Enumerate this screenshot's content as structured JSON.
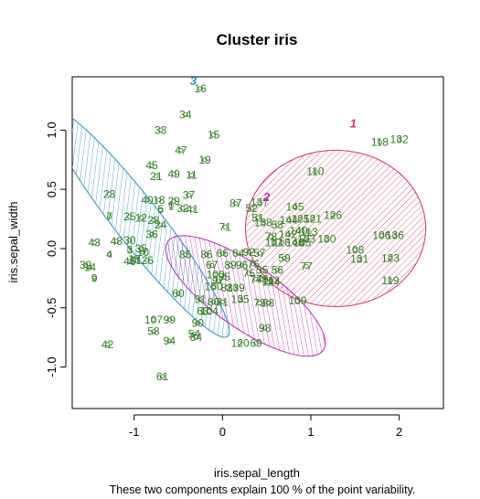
{
  "chart_data": {
    "type": "scatter",
    "title": "Cluster iris",
    "xlabel": "iris.sepal_length",
    "ylabel": "iris.sepal_width",
    "subtitle": "These two components explain 100 % of the point variability.",
    "xlim": [
      -1.7,
      2.5
    ],
    "ylim": [
      -1.35,
      1.45
    ],
    "xticks": [
      -1,
      0,
      1,
      2
    ],
    "yticks": [
      -1.0,
      -0.5,
      0.0,
      0.5,
      1.0
    ],
    "ytick_labels": [
      "-1.0",
      "-0.5",
      "0.0",
      "0.5",
      "1.0"
    ],
    "grid": false,
    "colors": {
      "point": "#2e7d1f",
      "cluster1": "#d6336c",
      "cluster2": "#c71fb5",
      "cluster3": "#2a8fc4"
    },
    "clusters": [
      {
        "label": "1",
        "color": "#d6336c",
        "cx": 1.28,
        "cy": 0.17,
        "rx": 1.02,
        "ry": 0.66,
        "angle": 0,
        "label_x": 1.48,
        "label_y": 1.02
      },
      {
        "label": "2",
        "color": "#c71fb5",
        "cx": 0.26,
        "cy": -0.4,
        "rx": 0.36,
        "ry": 0.8,
        "angle": -55,
        "label_x": 0.5,
        "label_y": 0.4
      },
      {
        "label": "3",
        "color": "#2a8fc4",
        "cx": -0.95,
        "cy": 0.22,
        "rx": 0.26,
        "ry": 1.22,
        "angle": -38,
        "label_x": -0.33,
        "label_y": 1.38
      }
    ],
    "points": [
      {
        "label": "16",
        "x": -0.25,
        "y": 1.35
      },
      {
        "label": "34",
        "x": -0.42,
        "y": 1.13
      },
      {
        "label": "33",
        "x": -0.7,
        "y": 1.0
      },
      {
        "label": "15",
        "x": -0.1,
        "y": 0.96
      },
      {
        "label": "47",
        "x": -0.47,
        "y": 0.83
      },
      {
        "label": "19",
        "x": -0.2,
        "y": 0.75
      },
      {
        "label": "45",
        "x": -0.8,
        "y": 0.7
      },
      {
        "label": "21",
        "x": -0.75,
        "y": 0.61
      },
      {
        "label": "49",
        "x": -0.55,
        "y": 0.63
      },
      {
        "label": "11",
        "x": -0.35,
        "y": 0.62
      },
      {
        "label": "23",
        "x": -1.28,
        "y": 0.46
      },
      {
        "label": "37",
        "x": -0.38,
        "y": 0.45
      },
      {
        "label": "40",
        "x": -0.85,
        "y": 0.41
      },
      {
        "label": "18",
        "x": -0.72,
        "y": 0.41
      },
      {
        "label": "29",
        "x": -0.55,
        "y": 0.4
      },
      {
        "label": "5",
        "x": -0.7,
        "y": 0.33
      },
      {
        "label": "1",
        "x": -0.58,
        "y": 0.36
      },
      {
        "label": "32",
        "x": -0.45,
        "y": 0.34
      },
      {
        "label": "41",
        "x": -0.34,
        "y": 0.33
      },
      {
        "label": "7",
        "x": -1.28,
        "y": 0.27
      },
      {
        "label": "25",
        "x": -1.05,
        "y": 0.27
      },
      {
        "label": "12",
        "x": -0.92,
        "y": 0.26
      },
      {
        "label": "28",
        "x": -0.78,
        "y": 0.24
      },
      {
        "label": "24",
        "x": -0.7,
        "y": 0.2
      },
      {
        "label": "36",
        "x": -0.8,
        "y": 0.12
      },
      {
        "label": "43",
        "x": -1.45,
        "y": 0.05
      },
      {
        "label": "48",
        "x": -1.2,
        "y": 0.06
      },
      {
        "label": "30",
        "x": -1.05,
        "y": 0.07
      },
      {
        "label": "4",
        "x": -1.28,
        "y": -0.05
      },
      {
        "label": "3",
        "x": -1.05,
        "y": -0.01
      },
      {
        "label": "35",
        "x": -0.92,
        "y": 0.0
      },
      {
        "label": "10",
        "x": -0.9,
        "y": -0.03
      },
      {
        "label": "13",
        "x": -1.0,
        "y": -0.09
      },
      {
        "label": "46",
        "x": -1.05,
        "y": -0.11
      },
      {
        "label": "31",
        "x": -0.98,
        "y": -0.1
      },
      {
        "label": "26",
        "x": -0.85,
        "y": -0.1
      },
      {
        "label": "39",
        "x": -1.55,
        "y": -0.14
      },
      {
        "label": "14",
        "x": -1.5,
        "y": -0.16
      },
      {
        "label": "9",
        "x": -1.45,
        "y": -0.25
      },
      {
        "label": "42",
        "x": -1.3,
        "y": -0.81
      },
      {
        "label": "110",
        "x": 1.05,
        "y": 0.65
      },
      {
        "label": "118",
        "x": 1.78,
        "y": 0.9
      },
      {
        "label": "132",
        "x": 2.0,
        "y": 0.92
      },
      {
        "label": "126",
        "x": 1.25,
        "y": 0.28
      },
      {
        "label": "106",
        "x": 1.8,
        "y": 0.11
      },
      {
        "label": "136",
        "x": 1.95,
        "y": 0.11
      },
      {
        "label": "103",
        "x": 0.95,
        "y": 0.08
      },
      {
        "label": "130",
        "x": 1.18,
        "y": 0.08
      },
      {
        "label": "108",
        "x": 1.5,
        "y": -0.01
      },
      {
        "label": "131",
        "x": 1.55,
        "y": -0.09
      },
      {
        "label": "123",
        "x": 1.9,
        "y": -0.08
      },
      {
        "label": "119",
        "x": 1.9,
        "y": -0.27
      },
      {
        "label": "109",
        "x": 0.85,
        "y": -0.44
      },
      {
        "label": "145",
        "x": 0.82,
        "y": 0.35
      },
      {
        "label": "125",
        "x": 0.88,
        "y": 0.25
      },
      {
        "label": "121",
        "x": 1.02,
        "y": 0.25
      },
      {
        "label": "144",
        "x": 0.75,
        "y": 0.24
      },
      {
        "label": "140",
        "x": 0.86,
        "y": 0.15
      },
      {
        "label": "113",
        "x": 0.98,
        "y": 0.14
      },
      {
        "label": "142",
        "x": 0.74,
        "y": 0.12
      },
      {
        "label": "116",
        "x": 0.67,
        "y": 0.05
      },
      {
        "label": "148",
        "x": 0.82,
        "y": 0.05
      },
      {
        "label": "105",
        "x": 0.9,
        "y": 0.05
      },
      {
        "label": "117",
        "x": 0.58,
        "y": 0.05
      },
      {
        "label": "77",
        "x": 0.95,
        "y": -0.15
      },
      {
        "label": "87",
        "x": 0.15,
        "y": 0.38
      },
      {
        "label": "137",
        "x": 0.42,
        "y": 0.39
      },
      {
        "label": "52",
        "x": 0.33,
        "y": 0.34
      },
      {
        "label": "51",
        "x": 0.4,
        "y": 0.26
      },
      {
        "label": "138",
        "x": 0.46,
        "y": 0.22
      },
      {
        "label": "53",
        "x": 0.62,
        "y": 0.2
      },
      {
        "label": "71",
        "x": 0.03,
        "y": 0.18
      },
      {
        "label": "78",
        "x": 0.55,
        "y": 0.1
      },
      {
        "label": "59",
        "x": 0.7,
        "y": -0.08
      },
      {
        "label": "85",
        "x": -0.42,
        "y": -0.05
      },
      {
        "label": "86",
        "x": -0.18,
        "y": -0.05
      },
      {
        "label": "66",
        "x": 0.0,
        "y": -0.04
      },
      {
        "label": "64",
        "x": 0.18,
        "y": -0.04
      },
      {
        "label": "92",
        "x": 0.3,
        "y": -0.03
      },
      {
        "label": "57",
        "x": 0.42,
        "y": -0.04
      },
      {
        "label": "76",
        "x": 0.35,
        "y": -0.13
      },
      {
        "label": "67",
        "x": -0.12,
        "y": -0.14
      },
      {
        "label": "89",
        "x": 0.09,
        "y": -0.14
      },
      {
        "label": "96",
        "x": 0.22,
        "y": -0.14
      },
      {
        "label": "55",
        "x": 0.45,
        "y": -0.18
      },
      {
        "label": "56",
        "x": 0.62,
        "y": -0.18
      },
      {
        "label": "75",
        "x": 0.3,
        "y": -0.21
      },
      {
        "label": "74",
        "x": 0.38,
        "y": -0.26
      },
      {
        "label": "100",
        "x": -0.08,
        "y": -0.22
      },
      {
        "label": "95",
        "x": 0.02,
        "y": -0.24
      },
      {
        "label": "97",
        "x": -0.05,
        "y": -0.27
      },
      {
        "label": "79",
        "x": 0.45,
        "y": -0.26
      },
      {
        "label": "124",
        "x": 0.55,
        "y": -0.28
      },
      {
        "label": "112",
        "x": 0.55,
        "y": -0.27
      },
      {
        "label": "150",
        "x": -0.1,
        "y": -0.32
      },
      {
        "label": "83",
        "x": 0.05,
        "y": -0.33
      },
      {
        "label": "139",
        "x": 0.15,
        "y": -0.33
      },
      {
        "label": "135",
        "x": 0.2,
        "y": -0.43
      },
      {
        "label": "73",
        "x": 0.42,
        "y": -0.46
      },
      {
        "label": "88",
        "x": 0.52,
        "y": -0.46
      },
      {
        "label": "91",
        "x": -0.25,
        "y": -0.43
      },
      {
        "label": "80",
        "x": -0.1,
        "y": -0.45
      },
      {
        "label": "81",
        "x": 0.0,
        "y": -0.45
      },
      {
        "label": "60",
        "x": -0.5,
        "y": -0.38
      },
      {
        "label": "104",
        "x": -0.15,
        "y": -0.53
      },
      {
        "label": "63",
        "x": -0.22,
        "y": -0.53
      },
      {
        "label": "107",
        "x": -0.78,
        "y": -0.6
      },
      {
        "label": "99",
        "x": -0.6,
        "y": -0.6
      },
      {
        "label": "90",
        "x": -0.28,
        "y": -0.63
      },
      {
        "label": "54",
        "x": -0.32,
        "y": -0.72
      },
      {
        "label": "58",
        "x": -0.78,
        "y": -0.7
      },
      {
        "label": "94",
        "x": -0.6,
        "y": -0.78
      },
      {
        "label": "84",
        "x": -0.3,
        "y": -0.75
      },
      {
        "label": "98",
        "x": 0.48,
        "y": -0.67
      },
      {
        "label": "120",
        "x": 0.2,
        "y": -0.8
      },
      {
        "label": "69",
        "x": 0.38,
        "y": -0.8
      },
      {
        "label": "61",
        "x": -0.68,
        "y": -1.08
      }
    ]
  }
}
